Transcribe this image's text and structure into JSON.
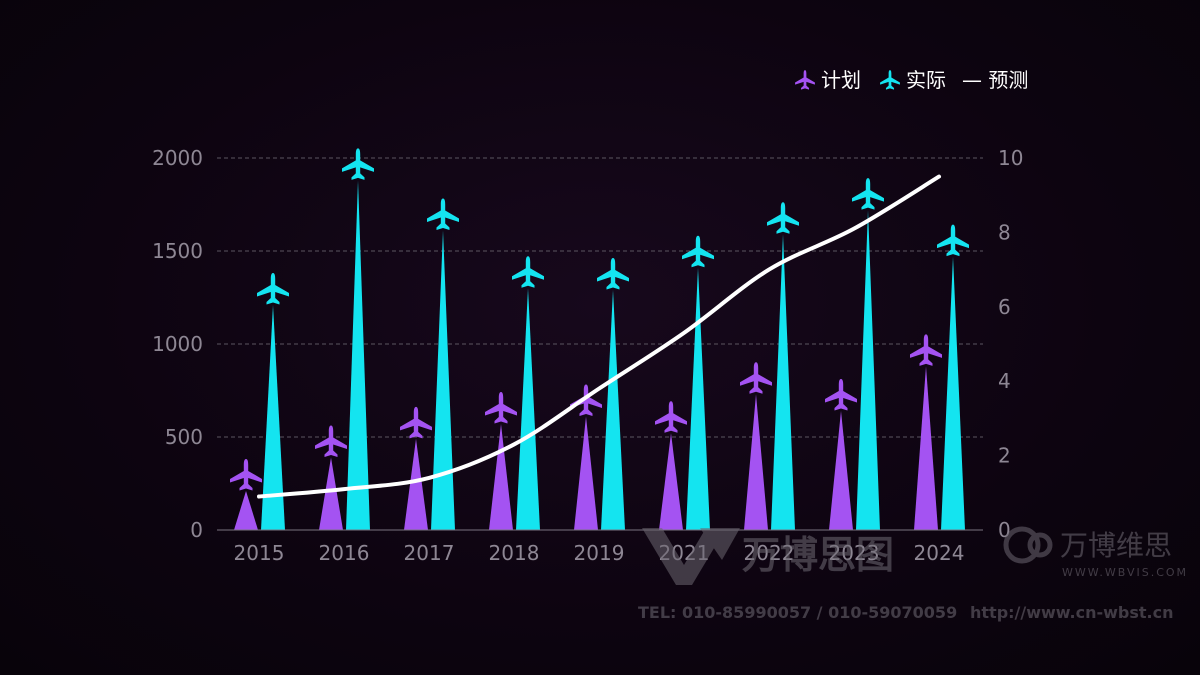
{
  "chart_data": {
    "type": "bar",
    "categories": [
      "2015",
      "2016",
      "2017",
      "2018",
      "2019",
      "2021",
      "2022",
      "2023",
      "2024"
    ],
    "series": [
      {
        "name": "计划",
        "axis": "left",
        "color": "#a453f2",
        "marker": "airplane",
        "values": [
          210,
          390,
          490,
          570,
          610,
          520,
          730,
          640,
          880
        ]
      },
      {
        "name": "实际",
        "axis": "left",
        "color": "#14e4f0",
        "marker": "airplane",
        "values": [
          1210,
          1880,
          1610,
          1300,
          1290,
          1410,
          1590,
          1720,
          1470
        ]
      },
      {
        "name": "预测",
        "axis": "right",
        "type": "line",
        "color": "#ffffff",
        "values": [
          0.9,
          1.1,
          1.4,
          2.3,
          3.8,
          5.3,
          7.0,
          8.1,
          9.5
        ]
      }
    ],
    "left_axis": {
      "ylim": [
        0,
        2000
      ],
      "ticks": [
        "0",
        "500",
        "1000",
        "1500",
        "2000"
      ]
    },
    "right_axis": {
      "ylim": [
        0,
        10
      ],
      "ticks": [
        "0",
        "2",
        "4",
        "6",
        "8",
        "10"
      ]
    },
    "grid": true,
    "legend": {
      "position": "top-right",
      "items": [
        {
          "label": "计划",
          "icon": "airplane-icon"
        },
        {
          "label": "实际",
          "icon": "airplane-icon"
        },
        {
          "label": "— 预测",
          "icon": "line"
        }
      ]
    }
  },
  "watermark": {
    "brand_large": "万博思图",
    "brand_small": "万博维思",
    "site_small": "WWW.WBVIS.COM",
    "tel": "TEL: 010-85990057 / 010-59070059",
    "url": "http://www.cn-wbst.cn"
  }
}
